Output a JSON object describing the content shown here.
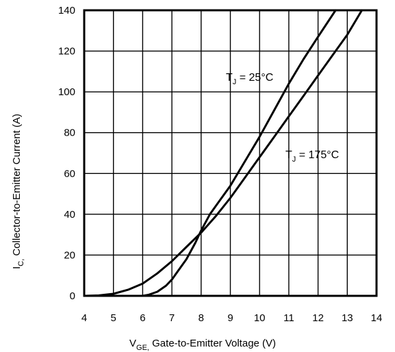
{
  "chart_data": {
    "type": "line",
    "xlabel": {
      "main": "V",
      "sub": "GE,",
      "rest": " Gate-to-Emitter Voltage (V)"
    },
    "ylabel": {
      "main": "I",
      "sub": "C,",
      "rest": " Collector-to-Emitter Current (A)"
    },
    "xlim": [
      4,
      14
    ],
    "ylim": [
      0,
      140
    ],
    "x_ticks": [
      4,
      5,
      6,
      7,
      8,
      9,
      10,
      11,
      12,
      13,
      14
    ],
    "y_ticks": [
      0,
      20,
      40,
      60,
      80,
      100,
      120,
      140
    ],
    "grid": true,
    "series": [
      {
        "name": "TJ = 25°C",
        "label": {
          "main": "T",
          "sub": "J",
          "rest": " = 25°C"
        },
        "color": "#000000",
        "x": [
          4.0,
          5.0,
          5.5,
          6.0,
          6.2,
          6.5,
          6.8,
          7.0,
          7.2,
          7.5,
          7.8,
          8.0,
          8.3,
          8.6,
          9.0,
          9.5,
          10.0,
          10.5,
          11.0,
          11.5,
          12.0,
          12.6
        ],
        "y": [
          0,
          0,
          0,
          0,
          0.5,
          2,
          5,
          8,
          12,
          18,
          26,
          32,
          40,
          46,
          54,
          66,
          78,
          91,
          104,
          116,
          127,
          140
        ]
      },
      {
        "name": "TJ = 175°C",
        "label": {
          "main": "T",
          "sub": "J",
          "rest": " = 175°C"
        },
        "color": "#000000",
        "x": [
          4.0,
          4.5,
          5.0,
          5.5,
          6.0,
          6.5,
          7.0,
          7.5,
          8.0,
          8.5,
          9.0,
          9.5,
          10.0,
          10.5,
          11.0,
          11.5,
          12.0,
          12.5,
          13.0,
          13.5
        ],
        "y": [
          0,
          0.2,
          1,
          3,
          6,
          11,
          17,
          24,
          31,
          39,
          48,
          58,
          68,
          78,
          88,
          98,
          108,
          118,
          128,
          140
        ]
      }
    ]
  }
}
